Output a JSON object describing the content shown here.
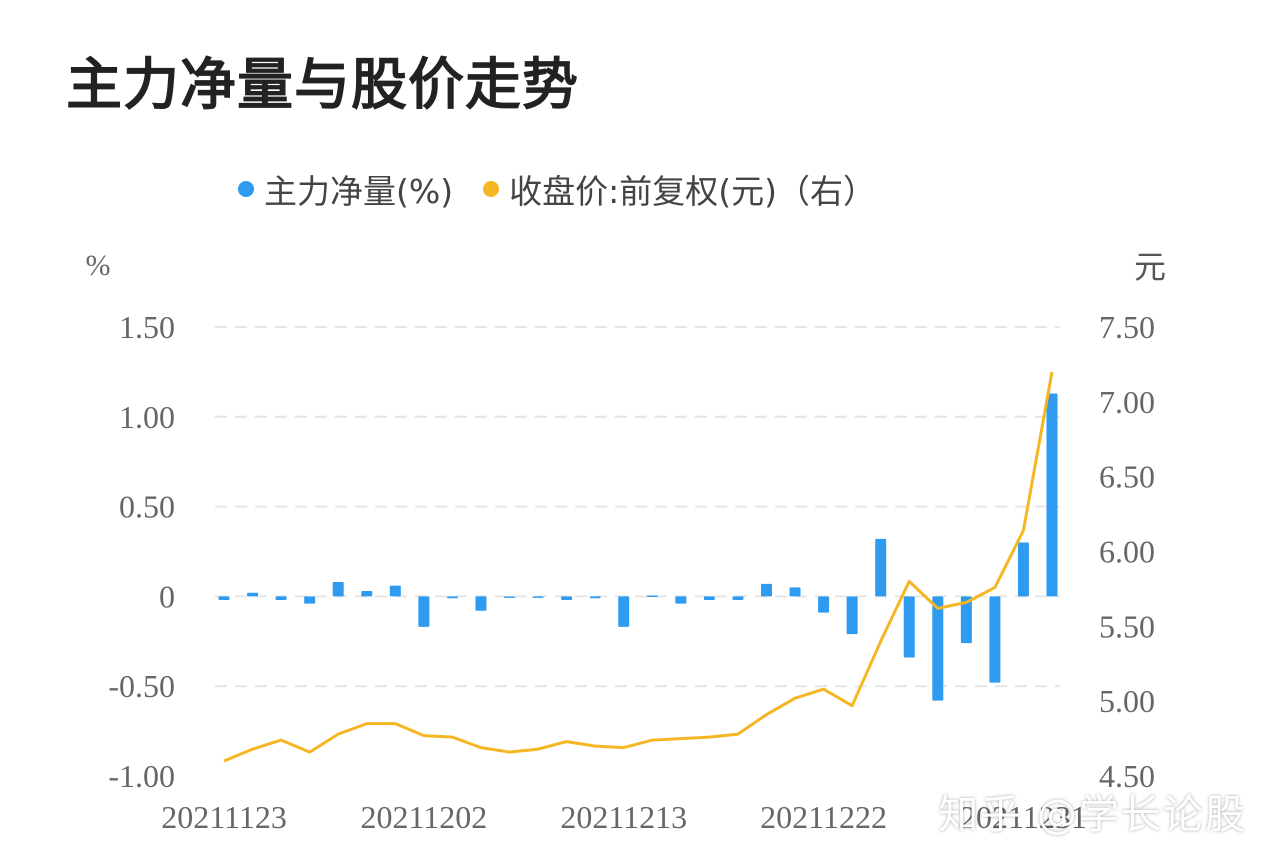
{
  "title": "主力净量与股价走势",
  "legend": {
    "bar_label": "主力净量(%)",
    "line_label": "收盘价:前复权(元)（右）"
  },
  "watermark": "知乎 @学长论股",
  "colors": {
    "bar": "#2e9bf0",
    "line": "#f5b623",
    "grid": "#e6e6e6",
    "axis_text": "#666666"
  },
  "chart_data": {
    "type": "bar+line",
    "left_axis": {
      "unit": "%",
      "ylim": [
        -1.0,
        1.5
      ],
      "ticks": [
        "1.50",
        "1.00",
        "0.50",
        "0",
        "-0.50",
        "-1.00"
      ]
    },
    "right_axis": {
      "unit": "元",
      "ylim": [
        4.5,
        7.5
      ],
      "ticks": [
        "7.50",
        "7.00",
        "6.50",
        "6.00",
        "5.50",
        "5.00",
        "4.50"
      ]
    },
    "x_tick_labels": [
      "20211123",
      "20211202",
      "20211213",
      "20211222",
      "20211231"
    ],
    "x_tick_index": [
      0,
      7,
      14,
      21,
      28
    ],
    "grid": true,
    "legend_position": "top",
    "series": [
      {
        "name": "主力净量(%)",
        "type": "bar",
        "axis": "left",
        "values": [
          -0.02,
          0.02,
          -0.02,
          -0.04,
          0.08,
          0.03,
          0.06,
          -0.17,
          -0.01,
          -0.08,
          0.0,
          -0.005,
          -0.02,
          -0.01,
          -0.17,
          0.005,
          -0.04,
          -0.02,
          -0.02,
          0.07,
          0.05,
          -0.09,
          -0.21,
          0.32,
          -0.34,
          -0.58,
          -0.26,
          -0.48,
          0.3,
          1.13
        ]
      },
      {
        "name": "收盘价:前复权(元)（右）",
        "type": "line",
        "axis": "right",
        "values": [
          4.6,
          4.68,
          4.74,
          4.66,
          4.78,
          4.85,
          4.85,
          4.77,
          4.76,
          4.69,
          4.66,
          4.68,
          4.73,
          4.7,
          4.69,
          4.74,
          4.75,
          4.76,
          4.78,
          4.91,
          5.02,
          5.08,
          4.97,
          5.4,
          5.8,
          5.62,
          5.66,
          5.76,
          6.14,
          7.2
        ]
      }
    ]
  }
}
